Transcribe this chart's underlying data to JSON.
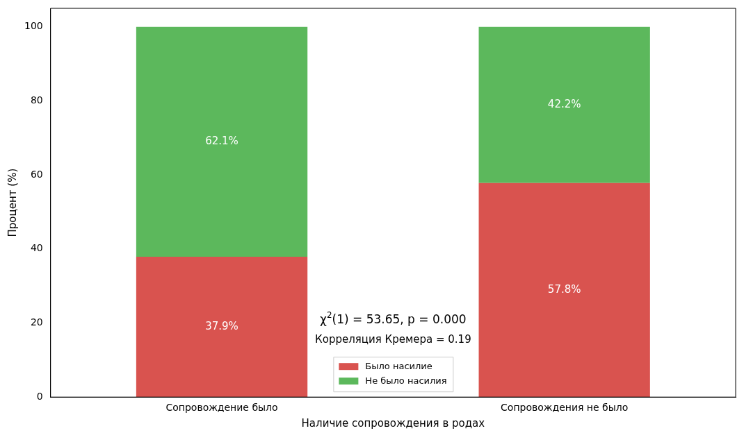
{
  "chart_data": {
    "type": "bar",
    "stacked": true,
    "xlabel": "Наличие сопровождения в родах",
    "ylabel": "Процент (%)",
    "categories": [
      "Сопровождение было",
      "Сопровождения не было"
    ],
    "series": [
      {
        "name": "Было насилие",
        "color": "#d9534f",
        "values": [
          37.9,
          57.8
        ],
        "value_labels": [
          "37.9%",
          "57.8%"
        ]
      },
      {
        "name": "Не было насилия",
        "color": "#5cb85c",
        "values": [
          62.1,
          42.2
        ],
        "value_labels": [
          "62.1%",
          "42.2%"
        ]
      }
    ],
    "ylim": [
      0,
      105
    ],
    "yticks": [
      0,
      20,
      40,
      60,
      80,
      100
    ],
    "grid": false,
    "legend": "bottom",
    "annotations": [
      "χ$^{2}$(1) = 53.65, p = 0.000",
      "Корреляция Кремера = 0.19"
    ]
  }
}
